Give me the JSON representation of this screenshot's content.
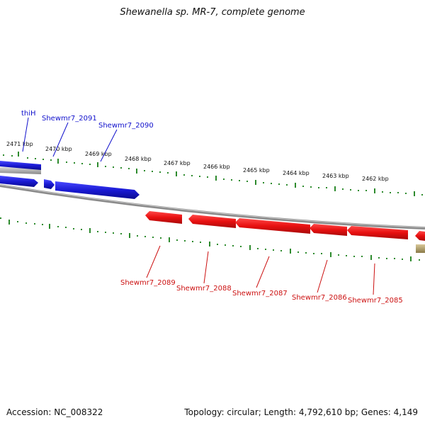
{
  "title": "Shewanella sp. MR-7, complete genome",
  "accession": "Accession: NC_008322",
  "topology": "Topology: circular; Length: 4,792,610 bp; Genes: 4,149",
  "colors": {
    "forward_gene": "#1a1ad4",
    "reverse_gene": "#e01010",
    "backbone": "#8a8a8a",
    "tick": "#2e8b2e",
    "other_feature": "#b8a878"
  },
  "scale_labels": [
    "2471 kbp",
    "2470 kbp",
    "2469 kbp",
    "2468 kbp",
    "2467 kbp",
    "2466 kbp",
    "2465 kbp",
    "2464 kbp",
    "2463 kbp",
    "2462 kbp"
  ],
  "forward_labels": [
    "thiH",
    "Shewmr7_2091",
    "Shewmr7_2090"
  ],
  "reverse_labels": [
    "Shewmr7_2089",
    "Shewmr7_2088",
    "Shewmr7_2087",
    "Shewmr7_2086",
    "Shewmr7_2085"
  ]
}
